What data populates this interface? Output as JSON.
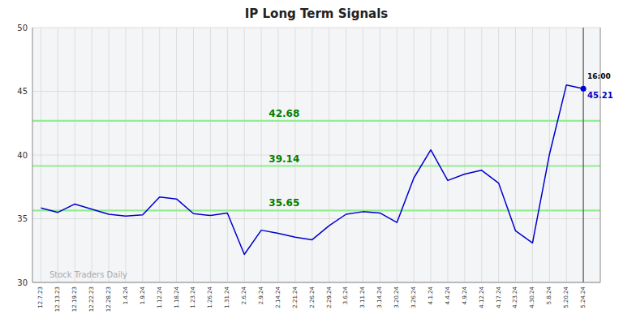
{
  "chart_data": {
    "type": "line",
    "title": "IP Long Term Signals",
    "categories": [
      "12.7.23",
      "12.13.23",
      "12.19.23",
      "12.22.23",
      "12.28.23",
      "1.4.24",
      "1.9.24",
      "1.12.24",
      "1.18.24",
      "1.23.24",
      "1.26.24",
      "1.31.24",
      "2.6.24",
      "2.9.24",
      "2.14.24",
      "2.21.24",
      "2.26.24",
      "2.29.24",
      "3.6.24",
      "3.11.24",
      "3.14.24",
      "3.20.24",
      "3.26.24",
      "4.1.24",
      "4.4.24",
      "4.9.24",
      "4.12.24",
      "4.17.24",
      "4.23.24",
      "4.30.24",
      "5.8.24",
      "5.20.24",
      "5.24.24"
    ],
    "values": [
      35.85,
      35.5,
      36.15,
      35.75,
      35.35,
      35.2,
      35.3,
      36.7,
      36.55,
      35.4,
      35.25,
      35.45,
      32.2,
      34.1,
      33.85,
      33.55,
      33.35,
      34.45,
      35.35,
      35.55,
      35.45,
      34.7,
      38.2,
      40.4,
      38.0,
      38.5,
      38.8,
      37.8,
      34.05,
      33.1,
      40.05,
      45.5,
      45.21
    ],
    "color": "#0000cc",
    "ylim": [
      30,
      50
    ],
    "yticks": [
      30,
      35,
      40,
      45,
      50
    ],
    "grid": true,
    "reference_lines": [
      {
        "value": 35.65,
        "label": "35.65",
        "color": "#90ee90"
      },
      {
        "value": 39.14,
        "label": "39.14",
        "color": "#90ee90"
      },
      {
        "value": 42.68,
        "label": "42.68",
        "color": "#90ee90"
      }
    ],
    "watermark": "Stock Traders Daily",
    "last_time_label": "16:00",
    "last_value_label": "45.21"
  }
}
